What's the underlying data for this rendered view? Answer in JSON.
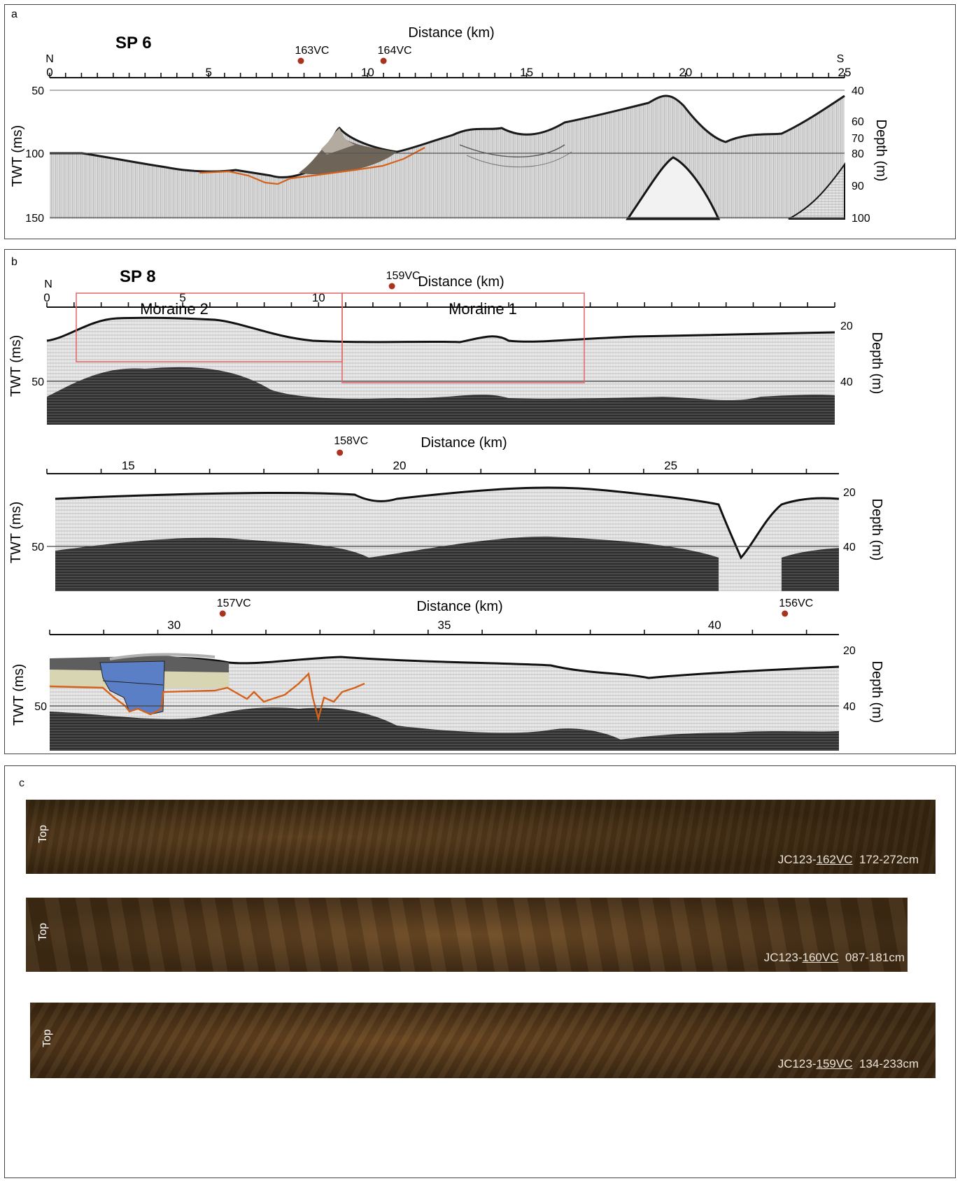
{
  "panel_a": {
    "letter": "a",
    "profile": "SP 6",
    "distance_label": "Distance (km)",
    "twt_label": "TWT (ms)",
    "depth_label": "Depth (m)",
    "north": "N",
    "south": "S",
    "x_ticks": [
      "0",
      "5",
      "10",
      "15",
      "20",
      "25"
    ],
    "twt_ticks": [
      "50",
      "100",
      "150"
    ],
    "depth_ticks": [
      "40",
      "60",
      "70",
      "80",
      "90",
      "100"
    ],
    "cores": [
      {
        "label": "163VC",
        "km": 7.9
      },
      {
        "label": "164VC",
        "km": 10.5
      }
    ]
  },
  "panel_b": {
    "letter": "b",
    "profile": "SP 8",
    "north": "N",
    "distance_label": "Distance (km)",
    "twt_label": "TWT (ms)",
    "depth_label": "Depth (m)",
    "strip1": {
      "x_ticks": [
        "0",
        "5",
        "10"
      ],
      "twt_tick": "50",
      "depth_ticks": [
        "20",
        "40"
      ],
      "boxes": [
        "Moraine 2",
        "Moraine 1"
      ],
      "cores": [
        {
          "label": "159VC",
          "km": 12.7
        }
      ]
    },
    "strip2": {
      "x_ticks": [
        "15",
        "20",
        "25"
      ],
      "twt_tick": "50",
      "depth_ticks": [
        "20",
        "40"
      ],
      "cores": [
        {
          "label": "158VC",
          "km": 18.9
        }
      ]
    },
    "strip3": {
      "x_ticks": [
        "30",
        "35",
        "40"
      ],
      "twt_tick": "50",
      "depth_ticks": [
        "20",
        "40"
      ],
      "cores": [
        {
          "label": "157VC",
          "km": 30.9
        },
        {
          "label": "156VC",
          "km": 41.3
        }
      ]
    }
  },
  "panel_c": {
    "letter": "c",
    "cores": [
      {
        "top": "Top",
        "id_prefix": "JC123-",
        "id_core": "162VC",
        "interval": "172-272cm"
      },
      {
        "top": "Top",
        "id_prefix": "JC123-",
        "id_core": "160VC",
        "interval": "087-181cm"
      },
      {
        "top": "Top",
        "id_prefix": "JC123-",
        "id_core": "159VC",
        "interval": "134-233cm"
      }
    ]
  },
  "colors": {
    "core_marker": "#a8331f",
    "pick_line": "#d4621c",
    "box_outline": "#e06666",
    "sediment_dark": "#3b2a16",
    "sediment_mid": "#5c3f1e"
  }
}
